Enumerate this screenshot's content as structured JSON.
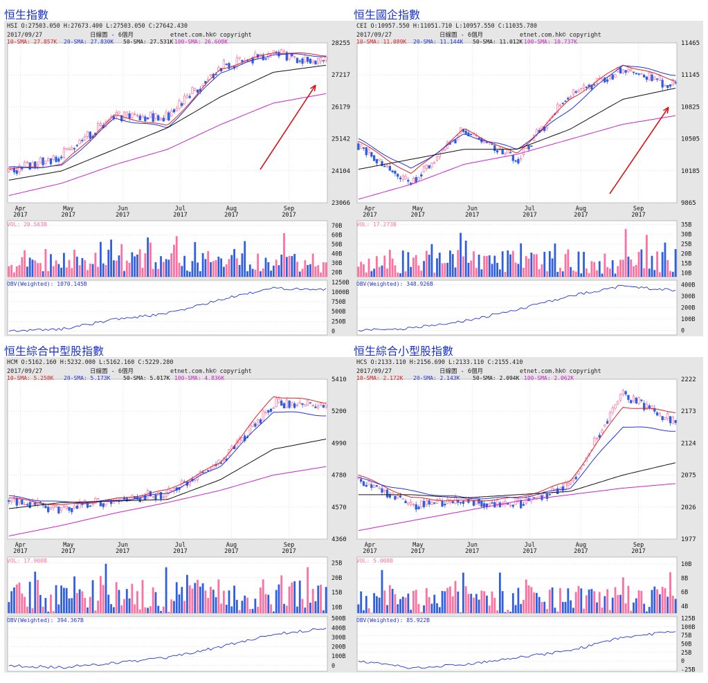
{
  "colors": {
    "frame": "#e6e6e6",
    "plot_bg": "#ffffff",
    "grid": "#c8c8c8",
    "up": "#ff6f9f",
    "down": "#2f5fe0",
    "sma10": "#e02020",
    "sma20": "#2233dd",
    "sma50": "#111111",
    "sma100": "#cc22cc",
    "obv": "#2233dd",
    "arrow": "#dd1111",
    "vol_label": "#ff6f9f",
    "obv_label": "#2233dd",
    "title": "#1a33cc"
  },
  "panels": [
    {
      "title": "恒生指數",
      "ohlc_line": "HSI    O:27503.050  H:27673.400  L:27503.050  C:27642.430",
      "date": "2017/09/27",
      "period": "日線圖 - 6個月",
      "copyright": "etnet.com.hk© copyright",
      "sma_labels": [
        "10-SMA: 27.857K",
        "20-SMA: 27.830K",
        "50-SMA: 27.531K",
        "100-SMA: 26.608K"
      ],
      "vol_label": "VOL: 20.563B",
      "obv_label": "OBV(Weighted): 1070.145B",
      "months": [
        {
          "m": "Apr",
          "y": "2017",
          "t": 0.04
        },
        {
          "m": "May",
          "y": "2017",
          "t": 0.19
        },
        {
          "m": "Jun",
          "y": "2017",
          "t": 0.36
        },
        {
          "m": "Jul",
          "y": "2017",
          "t": 0.54
        },
        {
          "m": "Aug",
          "y": "2017",
          "t": 0.7
        },
        {
          "m": "Sep",
          "y": "2017",
          "t": 0.88
        }
      ],
      "arrow": true
    },
    {
      "title": "恒生國企指數",
      "ohlc_line": "CEI    O:10957.550  H:11051.710  L:10957.550  C:11035.780",
      "date": "2017/09/27",
      "period": "日線圖 - 6個月",
      "copyright": "etnet.com.hk© copyright",
      "sma_labels": [
        "10-SMA: 11.089K",
        "20-SMA: 11.144K",
        "50-SMA: 11.012K",
        "100-SMA: 10.737K"
      ],
      "vol_label": "VOL: 17.273B",
      "obv_label": "OBV(Weighted): 348.926B",
      "months": [
        {
          "m": "Apr",
          "y": "2017",
          "t": 0.04
        },
        {
          "m": "May",
          "y": "2017",
          "t": 0.19
        },
        {
          "m": "Jun",
          "y": "2017",
          "t": 0.36
        },
        {
          "m": "Jul",
          "y": "2017",
          "t": 0.54
        },
        {
          "m": "Aug",
          "y": "2017",
          "t": 0.7
        },
        {
          "m": "Sep",
          "y": "2017",
          "t": 0.88
        }
      ],
      "arrow": true
    },
    {
      "title": "恒生綜合中型股指數",
      "ohlc_line": "HCM    O:5162.160  H:5232.000  L:5162.160  C:5229.280",
      "date": "2017/09/27",
      "period": "日線圖 - 6個月",
      "copyright": "etnet.com.hk© copyright",
      "sma_labels": [
        "10-SMA: 5.258K",
        "20-SMA: 5.173K",
        "50-SMA: 5.017K",
        "100-SMA: 4.836K"
      ],
      "vol_label": "VOL: 17.900B",
      "obv_label": "OBV(Weighted): 394.367B",
      "months": [
        {
          "m": "Apr",
          "y": "2017",
          "t": 0.04
        },
        {
          "m": "May",
          "y": "2017",
          "t": 0.19
        },
        {
          "m": "Jun",
          "y": "2017",
          "t": 0.36
        },
        {
          "m": "Jul",
          "y": "2017",
          "t": 0.54
        },
        {
          "m": "Aug",
          "y": "2017",
          "t": 0.7
        },
        {
          "m": "Sep",
          "y": "2017",
          "t": 0.88
        }
      ],
      "arrow": false
    },
    {
      "title": "恒生綜合小型股指數",
      "ohlc_line": "HCS    O:2133.110  H:2156.690  L:2133.110  C:2155.410",
      "date": "2017/09/27",
      "period": "日線圖 - 6個月",
      "copyright": "etnet.com.hk© copyright",
      "sma_labels": [
        "10-SMA: 2.172K",
        "20-SMA: 2.143K",
        "50-SMA: 2.094K",
        "100-SMA: 2.062K"
      ],
      "vol_label": "VOL: 5.008B",
      "obv_label": "OBV(Weighted): 85.922B",
      "months": [
        {
          "m": "Apr",
          "y": "2017",
          "t": 0.04
        },
        {
          "m": "May",
          "y": "2017",
          "t": 0.19
        },
        {
          "m": "Jun",
          "y": "2017",
          "t": 0.36
        },
        {
          "m": "Jul",
          "y": "2017",
          "t": 0.54
        },
        {
          "m": "Aug",
          "y": "2017",
          "t": 0.7
        },
        {
          "m": "Sep",
          "y": "2017",
          "t": 0.88
        }
      ],
      "arrow": false
    }
  ],
  "chart_data": [
    {
      "type": "line",
      "title": "恒生指數",
      "x": [
        "Apr 2017",
        "May 2017",
        "Jun 2017",
        "Jul 2017",
        "Aug 2017",
        "Sep 2017",
        "2017/09/27"
      ],
      "price": {
        "ylim": [
          23066,
          28255
        ],
        "ticks": [
          23066,
          24104,
          25142,
          26179,
          27217,
          28255
        ],
        "anchors": [
          24100,
          24600,
          25850,
          25850,
          27500,
          27900,
          27642
        ],
        "series": [
          {
            "name": "10-SMA",
            "values": [
              24150,
              24300,
              25900,
              25550,
              27400,
              27950,
              27857
            ]
          },
          {
            "name": "20-SMA",
            "values": [
              24200,
              24250,
              25800,
              25500,
              27300,
              27900,
              27830
            ]
          },
          {
            "name": "50-SMA",
            "values": [
              23800,
              24100,
              24800,
              25500,
              26500,
              27300,
              27531
            ]
          },
          {
            "name": "100-SMA",
            "values": [
              23300,
              23700,
              24300,
              24800,
              25600,
              26300,
              26608
            ]
          }
        ]
      },
      "volume": {
        "ticks": [
          "20B",
          "30B",
          "40B",
          "50B",
          "60B",
          "70B"
        ],
        "ylim": [
          15,
          75
        ],
        "max": 65,
        "avg": 32
      },
      "obv": {
        "ticks": [
          "0",
          "250B",
          "500B",
          "750B",
          "1000B",
          "1250B"
        ],
        "ylim": [
          -100,
          1300
        ],
        "values": [
          0,
          50,
          300,
          450,
          800,
          1100,
          1070
        ]
      }
    },
    {
      "type": "line",
      "title": "恒生國企指數",
      "x": [
        "Apr 2017",
        "May 2017",
        "Jun 2017",
        "Jul 2017",
        "Aug 2017",
        "Sep 2017",
        "2017/09/27"
      ],
      "price": {
        "ylim": [
          9865,
          11465
        ],
        "ticks": [
          9865,
          10185,
          10505,
          10825,
          11145,
          11465
        ],
        "anchors": [
          10450,
          10050,
          10600,
          10300,
          10950,
          11200,
          11035
        ],
        "series": [
          {
            "name": "10-SMA",
            "values": [
              10480,
              10150,
              10600,
              10350,
              10900,
              11250,
              11089
            ]
          },
          {
            "name": "20-SMA",
            "values": [
              10500,
              10200,
              10550,
              10400,
              10800,
              11250,
              11144
            ]
          },
          {
            "name": "50-SMA",
            "values": [
              10200,
              10300,
              10400,
              10400,
              10600,
              10900,
              11012
            ]
          },
          {
            "name": "100-SMA",
            "values": [
              9900,
              10050,
              10250,
              10350,
              10500,
              10650,
              10737
            ]
          }
        ]
      },
      "volume": {
        "ticks": [
          "10B",
          "15B",
          "20B",
          "25B",
          "30B",
          "35B"
        ],
        "ylim": [
          8,
          37
        ],
        "max": 33,
        "avg": 16
      },
      "obv": {
        "ticks": [
          "0",
          "100B",
          "200B",
          "300B",
          "400B"
        ],
        "ylim": [
          -40,
          440
        ],
        "values": [
          0,
          20,
          80,
          180,
          300,
          390,
          349
        ]
      }
    },
    {
      "type": "line",
      "title": "恒生綜合中型股指數",
      "x": [
        "Apr 2017",
        "May 2017",
        "Jun 2017",
        "Jul 2017",
        "Aug 2017",
        "Sep 2017",
        "2017/09/27"
      ],
      "price": {
        "ylim": [
          4360,
          5410
        ],
        "ticks": [
          4360,
          4570,
          4780,
          4990,
          5200,
          5410
        ],
        "anchors": [
          4620,
          4560,
          4620,
          4660,
          4850,
          5250,
          5229
        ],
        "series": [
          {
            "name": "10-SMA",
            "values": [
              4630,
              4580,
              4620,
              4680,
              4860,
              5300,
              5258
            ]
          },
          {
            "name": "20-SMA",
            "values": [
              4640,
              4600,
              4610,
              4660,
              4840,
              5200,
              5173
            ]
          },
          {
            "name": "50-SMA",
            "values": [
              4560,
              4600,
              4610,
              4620,
              4750,
              4950,
              5017
            ]
          },
          {
            "name": "100-SMA",
            "values": [
              4380,
              4450,
              4530,
              4600,
              4680,
              4780,
              4836
            ]
          }
        ]
      },
      "volume": {
        "ticks": [
          "10B",
          "15B",
          "20B",
          "25B"
        ],
        "ylim": [
          8,
          27
        ],
        "max": 25,
        "avg": 14
      },
      "obv": {
        "ticks": [
          "0",
          "100B",
          "200B",
          "300B",
          "400B",
          "500B"
        ],
        "ylim": [
          -60,
          520
        ],
        "values": [
          0,
          -20,
          30,
          80,
          200,
          330,
          394
        ]
      }
    },
    {
      "type": "line",
      "title": "恒生綜合小型股指數",
      "x": [
        "Apr 2017",
        "May 2017",
        "Jun 2017",
        "Jul 2017",
        "Aug 2017",
        "Sep 2017",
        "2017/09/27"
      ],
      "price": {
        "ylim": [
          1977,
          2222
        ],
        "ticks": [
          1977,
          2026,
          2075,
          2124,
          2173,
          2222
        ],
        "anchors": [
          2070,
          2030,
          2035,
          2030,
          2060,
          2200,
          2155
        ],
        "series": [
          {
            "name": "10-SMA",
            "values": [
              2075,
              2040,
              2035,
              2040,
              2065,
              2180,
              2172
            ]
          },
          {
            "name": "20-SMA",
            "values": [
              2070,
              2050,
              2040,
              2040,
              2055,
              2150,
              2143
            ]
          },
          {
            "name": "50-SMA",
            "values": [
              2045,
              2045,
              2040,
              2045,
              2050,
              2075,
              2094
            ]
          },
          {
            "name": "100-SMA",
            "values": [
              1990,
              2005,
              2020,
              2035,
              2045,
              2055,
              2062
            ]
          }
        ]
      },
      "volume": {
        "ticks": [
          "4B",
          "6B",
          "8B",
          "10B"
        ],
        "ylim": [
          3,
          11
        ],
        "max": 10,
        "avg": 5
      },
      "obv": {
        "ticks": [
          "-25B",
          "0",
          "25B",
          "50B",
          "75B",
          "100B",
          "125B"
        ],
        "ylim": [
          -30,
          130
        ],
        "values": [
          0,
          -20,
          -10,
          10,
          30,
          70,
          86
        ]
      }
    }
  ]
}
